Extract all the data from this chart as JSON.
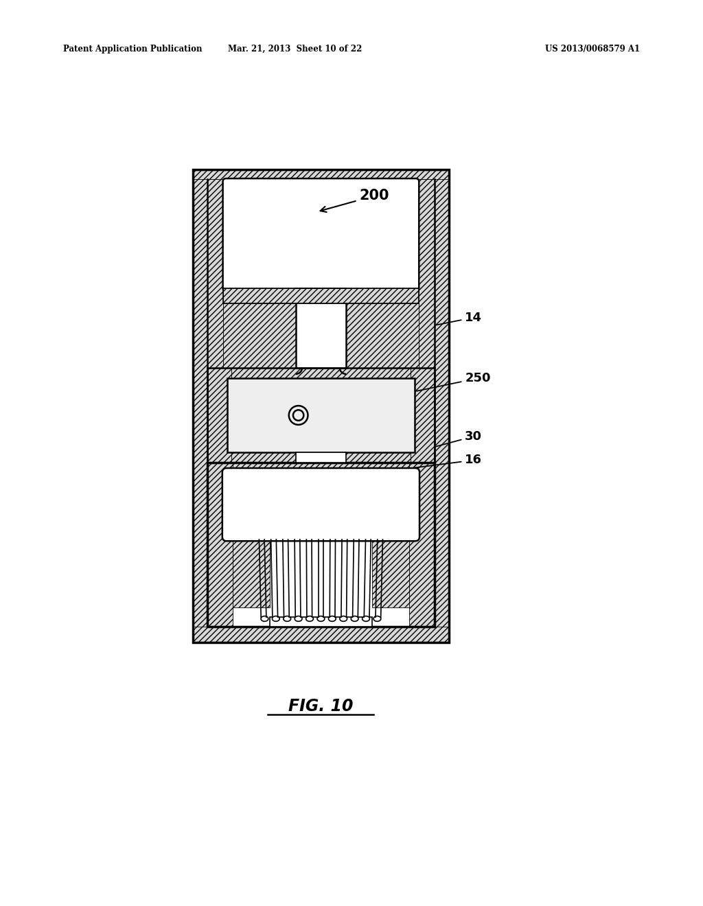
{
  "header_left": "Patent Application Publication",
  "header_mid": "Mar. 21, 2013  Sheet 10 of 22",
  "header_right": "US 2013/0068579 A1",
  "figure_label": "FIG. 10",
  "bg_color": "#ffffff",
  "hatch_color": "#000000"
}
